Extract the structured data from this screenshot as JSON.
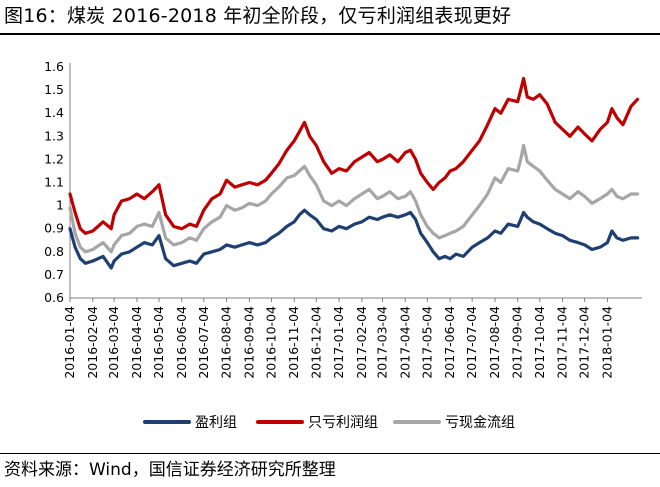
{
  "figure": {
    "title": "图16：煤炭 2016-2018 年初全阶段，仅亏利润组表现更好",
    "source": "资料来源：Wind，国信证券经济研究所整理"
  },
  "chart_data": {
    "type": "line",
    "ylim": [
      0.6,
      1.6
    ],
    "yticks": [
      "1.6",
      "1.5",
      "1.4",
      "1.3",
      "1.2",
      "1.1",
      "1",
      "0.9",
      "0.8",
      "0.7",
      "0.6"
    ],
    "xticks": [
      "2016-01-04",
      "2016-02-04",
      "2016-03-04",
      "2016-04-04",
      "2016-05-04",
      "2016-06-04",
      "2016-07-04",
      "2016-08-04",
      "2016-09-04",
      "2016-10-04",
      "2016-11-04",
      "2016-12-04",
      "2017-01-04",
      "2017-02-04",
      "2017-03-04",
      "2017-04-04",
      "2017-05-04",
      "2017-06-04",
      "2017-07-04",
      "2017-08-04",
      "2017-09-04",
      "2017-10-04",
      "2017-11-04",
      "2017-12-04",
      "2018-01-04"
    ],
    "xlim": [
      "2016-01-04",
      "2018-02-20"
    ],
    "grid": false,
    "legend_position": "bottom",
    "series": [
      {
        "name": "盈利组",
        "color": "#1f3f72",
        "points": [
          [
            "2016-01-04",
            0.9
          ],
          [
            "2016-01-11",
            0.82
          ],
          [
            "2016-01-18",
            0.77
          ],
          [
            "2016-01-25",
            0.75
          ],
          [
            "2016-02-04",
            0.76
          ],
          [
            "2016-02-18",
            0.78
          ],
          [
            "2016-02-29",
            0.73
          ],
          [
            "2016-03-04",
            0.76
          ],
          [
            "2016-03-14",
            0.79
          ],
          [
            "2016-03-25",
            0.8
          ],
          [
            "2016-04-04",
            0.82
          ],
          [
            "2016-04-14",
            0.84
          ],
          [
            "2016-04-25",
            0.83
          ],
          [
            "2016-05-04",
            0.87
          ],
          [
            "2016-05-13",
            0.77
          ],
          [
            "2016-05-24",
            0.74
          ],
          [
            "2016-06-04",
            0.75
          ],
          [
            "2016-06-15",
            0.76
          ],
          [
            "2016-06-24",
            0.75
          ],
          [
            "2016-07-04",
            0.79
          ],
          [
            "2016-07-15",
            0.8
          ],
          [
            "2016-07-26",
            0.81
          ],
          [
            "2016-08-04",
            0.83
          ],
          [
            "2016-08-15",
            0.82
          ],
          [
            "2016-08-25",
            0.83
          ],
          [
            "2016-09-04",
            0.84
          ],
          [
            "2016-09-15",
            0.83
          ],
          [
            "2016-09-26",
            0.84
          ],
          [
            "2016-10-04",
            0.86
          ],
          [
            "2016-10-14",
            0.88
          ],
          [
            "2016-10-25",
            0.91
          ],
          [
            "2016-11-04",
            0.93
          ],
          [
            "2016-11-11",
            0.96
          ],
          [
            "2016-11-18",
            0.98
          ],
          [
            "2016-11-25",
            0.96
          ],
          [
            "2016-12-04",
            0.94
          ],
          [
            "2016-12-14",
            0.9
          ],
          [
            "2016-12-25",
            0.89
          ],
          [
            "2017-01-04",
            0.91
          ],
          [
            "2017-01-14",
            0.9
          ],
          [
            "2017-01-25",
            0.92
          ],
          [
            "2017-02-04",
            0.93
          ],
          [
            "2017-02-14",
            0.95
          ],
          [
            "2017-02-25",
            0.94
          ],
          [
            "2017-03-04",
            0.95
          ],
          [
            "2017-03-14",
            0.96
          ],
          [
            "2017-03-25",
            0.95
          ],
          [
            "2017-04-04",
            0.96
          ],
          [
            "2017-04-11",
            0.97
          ],
          [
            "2017-04-18",
            0.94
          ],
          [
            "2017-04-25",
            0.88
          ],
          [
            "2017-05-04",
            0.84
          ],
          [
            "2017-05-12",
            0.8
          ],
          [
            "2017-05-20",
            0.77
          ],
          [
            "2017-05-28",
            0.78
          ],
          [
            "2017-06-04",
            0.77
          ],
          [
            "2017-06-12",
            0.79
          ],
          [
            "2017-06-22",
            0.78
          ],
          [
            "2017-07-04",
            0.82
          ],
          [
            "2017-07-14",
            0.84
          ],
          [
            "2017-07-25",
            0.86
          ],
          [
            "2017-08-04",
            0.89
          ],
          [
            "2017-08-12",
            0.88
          ],
          [
            "2017-08-22",
            0.92
          ],
          [
            "2017-09-04",
            0.91
          ],
          [
            "2017-09-08",
            0.94
          ],
          [
            "2017-09-12",
            0.97
          ],
          [
            "2017-09-17",
            0.95
          ],
          [
            "2017-09-25",
            0.93
          ],
          [
            "2017-10-04",
            0.92
          ],
          [
            "2017-10-14",
            0.9
          ],
          [
            "2017-10-25",
            0.88
          ],
          [
            "2017-11-04",
            0.87
          ],
          [
            "2017-11-14",
            0.85
          ],
          [
            "2017-11-25",
            0.84
          ],
          [
            "2017-12-04",
            0.83
          ],
          [
            "2017-12-14",
            0.81
          ],
          [
            "2017-12-25",
            0.82
          ],
          [
            "2018-01-04",
            0.84
          ],
          [
            "2018-01-10",
            0.89
          ],
          [
            "2018-01-17",
            0.86
          ],
          [
            "2018-01-25",
            0.85
          ],
          [
            "2018-02-05",
            0.86
          ],
          [
            "2018-02-14",
            0.86
          ]
        ]
      },
      {
        "name": "只亏利润组",
        "color": "#c00000",
        "points": [
          [
            "2016-01-04",
            1.05
          ],
          [
            "2016-01-11",
            0.97
          ],
          [
            "2016-01-18",
            0.9
          ],
          [
            "2016-01-25",
            0.88
          ],
          [
            "2016-02-04",
            0.89
          ],
          [
            "2016-02-18",
            0.93
          ],
          [
            "2016-02-29",
            0.9
          ],
          [
            "2016-03-04",
            0.96
          ],
          [
            "2016-03-14",
            1.02
          ],
          [
            "2016-03-25",
            1.03
          ],
          [
            "2016-04-04",
            1.05
          ],
          [
            "2016-04-14",
            1.03
          ],
          [
            "2016-04-25",
            1.06
          ],
          [
            "2016-05-04",
            1.09
          ],
          [
            "2016-05-13",
            0.96
          ],
          [
            "2016-05-24",
            0.91
          ],
          [
            "2016-06-04",
            0.9
          ],
          [
            "2016-06-15",
            0.92
          ],
          [
            "2016-06-24",
            0.91
          ],
          [
            "2016-07-04",
            0.98
          ],
          [
            "2016-07-15",
            1.03
          ],
          [
            "2016-07-26",
            1.05
          ],
          [
            "2016-08-04",
            1.11
          ],
          [
            "2016-08-15",
            1.08
          ],
          [
            "2016-08-25",
            1.09
          ],
          [
            "2016-09-04",
            1.1
          ],
          [
            "2016-09-15",
            1.09
          ],
          [
            "2016-09-26",
            1.11
          ],
          [
            "2016-10-04",
            1.14
          ],
          [
            "2016-10-14",
            1.18
          ],
          [
            "2016-10-25",
            1.24
          ],
          [
            "2016-11-04",
            1.28
          ],
          [
            "2016-11-11",
            1.32
          ],
          [
            "2016-11-18",
            1.36
          ],
          [
            "2016-11-25",
            1.3
          ],
          [
            "2016-12-04",
            1.26
          ],
          [
            "2016-12-14",
            1.19
          ],
          [
            "2016-12-25",
            1.14
          ],
          [
            "2017-01-04",
            1.16
          ],
          [
            "2017-01-14",
            1.15
          ],
          [
            "2017-01-25",
            1.19
          ],
          [
            "2017-02-04",
            1.21
          ],
          [
            "2017-02-14",
            1.23
          ],
          [
            "2017-02-25",
            1.19
          ],
          [
            "2017-03-04",
            1.2
          ],
          [
            "2017-03-14",
            1.22
          ],
          [
            "2017-03-25",
            1.19
          ],
          [
            "2017-04-04",
            1.23
          ],
          [
            "2017-04-11",
            1.24
          ],
          [
            "2017-04-18",
            1.2
          ],
          [
            "2017-04-25",
            1.14
          ],
          [
            "2017-05-04",
            1.1
          ],
          [
            "2017-05-12",
            1.07
          ],
          [
            "2017-05-20",
            1.1
          ],
          [
            "2017-05-28",
            1.12
          ],
          [
            "2017-06-04",
            1.15
          ],
          [
            "2017-06-12",
            1.16
          ],
          [
            "2017-06-22",
            1.19
          ],
          [
            "2017-07-04",
            1.24
          ],
          [
            "2017-07-14",
            1.28
          ],
          [
            "2017-07-25",
            1.35
          ],
          [
            "2017-08-04",
            1.42
          ],
          [
            "2017-08-12",
            1.4
          ],
          [
            "2017-08-22",
            1.46
          ],
          [
            "2017-09-04",
            1.45
          ],
          [
            "2017-09-08",
            1.5
          ],
          [
            "2017-09-12",
            1.55
          ],
          [
            "2017-09-17",
            1.47
          ],
          [
            "2017-09-25",
            1.46
          ],
          [
            "2017-10-04",
            1.48
          ],
          [
            "2017-10-14",
            1.44
          ],
          [
            "2017-10-25",
            1.36
          ],
          [
            "2017-11-04",
            1.33
          ],
          [
            "2017-11-14",
            1.3
          ],
          [
            "2017-11-25",
            1.34
          ],
          [
            "2017-12-04",
            1.31
          ],
          [
            "2017-12-14",
            1.28
          ],
          [
            "2017-12-25",
            1.33
          ],
          [
            "2018-01-04",
            1.36
          ],
          [
            "2018-01-10",
            1.42
          ],
          [
            "2018-01-17",
            1.38
          ],
          [
            "2018-01-25",
            1.35
          ],
          [
            "2018-02-05",
            1.43
          ],
          [
            "2018-02-14",
            1.46
          ]
        ]
      },
      {
        "name": "亏现金流组",
        "color": "#a6a6a6",
        "points": [
          [
            "2016-01-04",
            0.99
          ],
          [
            "2016-01-11",
            0.88
          ],
          [
            "2016-01-18",
            0.82
          ],
          [
            "2016-01-25",
            0.8
          ],
          [
            "2016-02-04",
            0.81
          ],
          [
            "2016-02-18",
            0.84
          ],
          [
            "2016-02-29",
            0.8
          ],
          [
            "2016-03-04",
            0.83
          ],
          [
            "2016-03-14",
            0.87
          ],
          [
            "2016-03-25",
            0.88
          ],
          [
            "2016-04-04",
            0.91
          ],
          [
            "2016-04-14",
            0.92
          ],
          [
            "2016-04-25",
            0.91
          ],
          [
            "2016-05-04",
            0.97
          ],
          [
            "2016-05-13",
            0.86
          ],
          [
            "2016-05-24",
            0.83
          ],
          [
            "2016-06-04",
            0.84
          ],
          [
            "2016-06-15",
            0.86
          ],
          [
            "2016-06-24",
            0.85
          ],
          [
            "2016-07-04",
            0.9
          ],
          [
            "2016-07-15",
            0.93
          ],
          [
            "2016-07-26",
            0.95
          ],
          [
            "2016-08-04",
            1.0
          ],
          [
            "2016-08-15",
            0.98
          ],
          [
            "2016-08-25",
            0.99
          ],
          [
            "2016-09-04",
            1.01
          ],
          [
            "2016-09-15",
            1.0
          ],
          [
            "2016-09-26",
            1.02
          ],
          [
            "2016-10-04",
            1.05
          ],
          [
            "2016-10-14",
            1.08
          ],
          [
            "2016-10-25",
            1.12
          ],
          [
            "2016-11-04",
            1.13
          ],
          [
            "2016-11-11",
            1.15
          ],
          [
            "2016-11-18",
            1.17
          ],
          [
            "2016-11-25",
            1.13
          ],
          [
            "2016-12-04",
            1.09
          ],
          [
            "2016-12-14",
            1.02
          ],
          [
            "2016-12-25",
            1.0
          ],
          [
            "2017-01-04",
            1.02
          ],
          [
            "2017-01-14",
            1.0
          ],
          [
            "2017-01-25",
            1.03
          ],
          [
            "2017-02-04",
            1.05
          ],
          [
            "2017-02-14",
            1.07
          ],
          [
            "2017-02-25",
            1.03
          ],
          [
            "2017-03-04",
            1.04
          ],
          [
            "2017-03-14",
            1.06
          ],
          [
            "2017-03-25",
            1.03
          ],
          [
            "2017-04-04",
            1.04
          ],
          [
            "2017-04-11",
            1.06
          ],
          [
            "2017-04-18",
            1.02
          ],
          [
            "2017-04-25",
            0.96
          ],
          [
            "2017-05-04",
            0.91
          ],
          [
            "2017-05-12",
            0.88
          ],
          [
            "2017-05-20",
            0.86
          ],
          [
            "2017-05-28",
            0.87
          ],
          [
            "2017-06-04",
            0.88
          ],
          [
            "2017-06-12",
            0.89
          ],
          [
            "2017-06-22",
            0.91
          ],
          [
            "2017-07-04",
            0.96
          ],
          [
            "2017-07-14",
            1.0
          ],
          [
            "2017-07-25",
            1.05
          ],
          [
            "2017-08-04",
            1.12
          ],
          [
            "2017-08-12",
            1.1
          ],
          [
            "2017-08-22",
            1.16
          ],
          [
            "2017-09-04",
            1.15
          ],
          [
            "2017-09-08",
            1.2
          ],
          [
            "2017-09-12",
            1.26
          ],
          [
            "2017-09-17",
            1.19
          ],
          [
            "2017-09-25",
            1.17
          ],
          [
            "2017-10-04",
            1.15
          ],
          [
            "2017-10-14",
            1.11
          ],
          [
            "2017-10-25",
            1.07
          ],
          [
            "2017-11-04",
            1.05
          ],
          [
            "2017-11-14",
            1.03
          ],
          [
            "2017-11-25",
            1.06
          ],
          [
            "2017-12-04",
            1.04
          ],
          [
            "2017-12-14",
            1.01
          ],
          [
            "2017-12-25",
            1.03
          ],
          [
            "2018-01-04",
            1.05
          ],
          [
            "2018-01-10",
            1.07
          ],
          [
            "2018-01-17",
            1.04
          ],
          [
            "2018-01-25",
            1.03
          ],
          [
            "2018-02-05",
            1.05
          ],
          [
            "2018-02-14",
            1.05
          ]
        ]
      }
    ]
  }
}
